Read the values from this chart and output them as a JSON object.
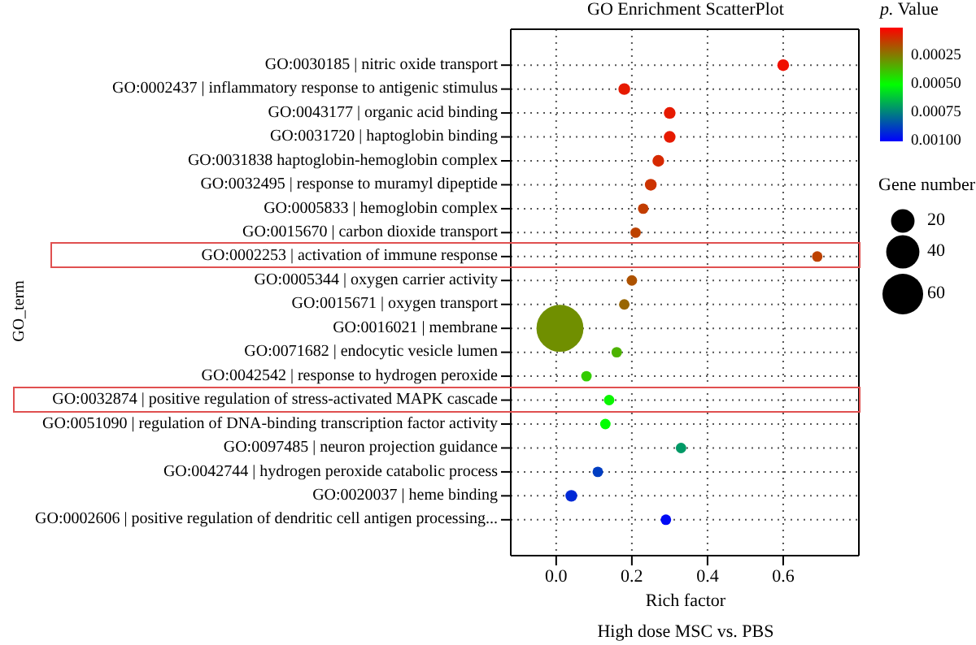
{
  "chart_data": {
    "type": "bubble",
    "orientation": "horizontal",
    "title": "GO Enrichment ScatterPlot",
    "xlabel": "Rich factor",
    "ylabel": "GO_term",
    "annotations": [
      "High dose MSC vs. PBS"
    ],
    "categories": [
      "GO:0030185 | nitric oxide transport",
      "GO:0002437 | inflammatory response to antigenic stimulus",
      "GO:0043177 | organic acid binding",
      "GO:0031720 | haptoglobin binding",
      "GO:0031838 haptoglobin-hemoglobin complex",
      "GO:0032495 | response to muramyl dipeptide",
      "GO:0005833 | hemoglobin complex",
      "GO:0015670 | carbon dioxide transport",
      "GO:0002253 | activation of immune response",
      "GO:0005344 | oxygen carrier activity",
      "GO:0015671 | oxygen transport",
      "GO:0016021 | membrane",
      "GO:0071682 | endocytic vesicle lumen",
      "GO:0042542 | response to hydrogen peroxide",
      "GO:0032874 | positive regulation of stress-activated MAPK cascade",
      "GO:0051090 | regulation of DNA-binding transcription factor activity",
      "GO:0097485 | neuron projection guidance",
      "GO:0042744 | hydrogen peroxide catabolic process",
      "GO:0020037 | heme binding",
      "GO:0002606 | positive regulation of dendritic cell antigen processing..."
    ],
    "values": [
      0.6,
      0.18,
      0.3,
      0.3,
      0.27,
      0.25,
      0.23,
      0.21,
      0.69,
      0.2,
      0.18,
      0.01,
      0.16,
      0.08,
      0.14,
      0.13,
      0.33,
      0.11,
      0.04,
      0.29
    ],
    "cvalues": [
      3e-05,
      5e-05,
      5e-05,
      5e-05,
      8e-05,
      0.0001,
      0.00012,
      0.00013,
      0.00013,
      0.00016,
      0.0002,
      0.00028,
      0.00035,
      0.0004,
      0.00048,
      0.0005,
      0.0007,
      0.00088,
      0.00092,
      0.00098
    ],
    "sizes": [
      5,
      5,
      5,
      5,
      5,
      5,
      4,
      4,
      4,
      4,
      4,
      80,
      4,
      4,
      4,
      4,
      4,
      4,
      5,
      4
    ],
    "size_legend": [
      {
        "value": 20,
        "label": "20"
      },
      {
        "value": 40,
        "label": "40"
      },
      {
        "value": 60,
        "label": "60"
      }
    ],
    "legend_title": "Gene number",
    "clabel": "p. Value",
    "clim": [
      0,
      0.001
    ],
    "cticks": [
      {
        "value": 0.00025,
        "label": "0.00025"
      },
      {
        "value": 0.0005,
        "label": "0.00050"
      },
      {
        "value": 0.00075,
        "label": "0.00075"
      },
      {
        "value": 0.001,
        "label": "0.00100"
      }
    ],
    "xlim": [
      -0.12,
      0.8
    ],
    "xticks": [
      {
        "value": 0,
        "label": "0.0"
      },
      {
        "value": 0.2,
        "label": "0.2"
      },
      {
        "value": 0.4,
        "label": "0.4"
      },
      {
        "value": 0.6,
        "label": "0.6"
      }
    ],
    "grid": true
  }
}
